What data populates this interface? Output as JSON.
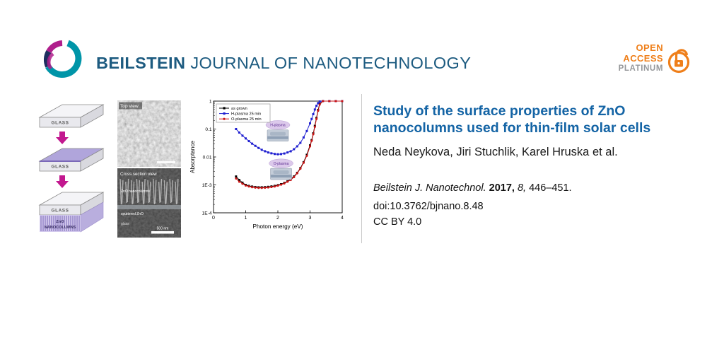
{
  "header": {
    "brand_bold": "BEILSTEIN",
    "brand_rest": "JOURNAL OF NANOTECHNOLOGY",
    "open_access": {
      "open": "OPEN",
      "access": "ACCESS",
      "platinum": "PLATINUM"
    }
  },
  "schematic": {
    "glass1": "GLASS",
    "glass2": "GLASS",
    "glass3": "GLASS",
    "zno_line1": "ZnO",
    "zno_line2": "NANOCOLUMNS"
  },
  "sem": {
    "top_view_label": "Top view",
    "cross_section_label": "Cross section view",
    "ann_columns": "ZnO nanocolumns",
    "ann_sputtered": "sputtered ZnO",
    "ann_glass": "glass",
    "scale_bar": "500 nm"
  },
  "article": {
    "title": "Study of the surface properties of ZnO nanocolumns used for thin-film solar cells",
    "authors": "Neda Neykova, Jiri Stuchlik, Karel Hruska et al.",
    "citation_journal": "Beilstein J. Nanotechnol.",
    "citation_year": "2017,",
    "citation_volume": "8,",
    "citation_pages": "446–451.",
    "doi": "doi:10.3762/bjnano.8.48",
    "license": "CC BY 4.0"
  },
  "chart_data": {
    "type": "line",
    "title": "",
    "xlabel": "Photon energy (eV)",
    "ylabel": "Absorptance",
    "xlim": [
      0,
      4
    ],
    "ylim": [
      0.0001,
      1
    ],
    "yscale": "log",
    "grid": false,
    "legend_position": "top-left",
    "xticks": [
      0,
      1,
      2,
      3,
      4
    ],
    "yticks": [
      {
        "v": 1,
        "label": "1"
      },
      {
        "v": 0.1,
        "label": "0.1"
      },
      {
        "v": 0.01,
        "label": "0.01"
      },
      {
        "v": 0.001,
        "label": "1E-3"
      },
      {
        "v": 0.0001,
        "label": "1E-4"
      }
    ],
    "insets": [
      {
        "label": "H-plasma",
        "x": 2.0,
        "y": 0.14
      },
      {
        "label": "O-plasma",
        "x": 2.1,
        "y": 0.0059
      }
    ],
    "series": [
      {
        "name": "as grown",
        "color": "#000000",
        "marker": "square",
        "x": [
          0.7,
          0.8,
          0.9,
          1.0,
          1.1,
          1.2,
          1.3,
          1.4,
          1.5,
          1.6,
          1.7,
          1.8,
          1.9,
          2.0,
          2.1,
          2.2,
          2.3,
          2.4,
          2.5,
          2.6,
          2.7,
          2.8,
          2.9,
          3.0,
          3.05,
          3.1,
          3.15,
          3.2,
          3.25,
          3.3,
          3.4,
          3.6,
          3.8,
          4.0
        ],
        "y": [
          0.002,
          0.0015,
          0.0012,
          0.001,
          0.00092,
          0.00087,
          0.00084,
          0.00082,
          0.00082,
          0.00083,
          0.00085,
          0.00088,
          0.00092,
          0.00098,
          0.00106,
          0.00118,
          0.00135,
          0.0016,
          0.002,
          0.0027,
          0.004,
          0.0065,
          0.012,
          0.026,
          0.04,
          0.07,
          0.13,
          0.25,
          0.48,
          0.8,
          1.0,
          1.0,
          1.0,
          1.0
        ]
      },
      {
        "name": "H-plasma 25 min",
        "color": "#1f1fd0",
        "marker": "square",
        "x": [
          0.7,
          0.8,
          0.9,
          1.0,
          1.1,
          1.2,
          1.3,
          1.4,
          1.5,
          1.6,
          1.7,
          1.8,
          1.9,
          2.0,
          2.1,
          2.2,
          2.3,
          2.4,
          2.5,
          2.6,
          2.7,
          2.8,
          2.9,
          3.0,
          3.05,
          3.1,
          3.15,
          3.2,
          3.25,
          3.3,
          3.4,
          3.6,
          3.8,
          4.0
        ],
        "y": [
          0.1,
          0.075,
          0.058,
          0.046,
          0.037,
          0.03,
          0.025,
          0.021,
          0.018,
          0.016,
          0.0145,
          0.0135,
          0.0128,
          0.0125,
          0.0127,
          0.0133,
          0.0145,
          0.016,
          0.019,
          0.024,
          0.032,
          0.05,
          0.085,
          0.16,
          0.23,
          0.34,
          0.5,
          0.68,
          0.85,
          0.97,
          1.0,
          1.0,
          1.0,
          1.0
        ]
      },
      {
        "name": "O-plasma 25 min",
        "color": "#cc1414",
        "marker": "circle",
        "x": [
          0.7,
          0.8,
          0.9,
          1.0,
          1.1,
          1.2,
          1.3,
          1.4,
          1.5,
          1.6,
          1.7,
          1.8,
          1.9,
          2.0,
          2.1,
          2.2,
          2.3,
          2.4,
          2.5,
          2.6,
          2.7,
          2.8,
          2.9,
          3.0,
          3.05,
          3.1,
          3.15,
          3.2,
          3.25,
          3.3,
          3.4,
          3.6,
          3.8,
          4.0
        ],
        "y": [
          0.0017,
          0.0013,
          0.0011,
          0.00095,
          0.00088,
          0.00083,
          0.0008,
          0.00078,
          0.00078,
          0.00079,
          0.00081,
          0.00084,
          0.00088,
          0.00094,
          0.00102,
          0.00113,
          0.0013,
          0.0015,
          0.0019,
          0.0026,
          0.0038,
          0.0062,
          0.011,
          0.024,
          0.038,
          0.065,
          0.12,
          0.23,
          0.45,
          0.75,
          1.0,
          1.0,
          1.0,
          1.0
        ]
      }
    ]
  }
}
